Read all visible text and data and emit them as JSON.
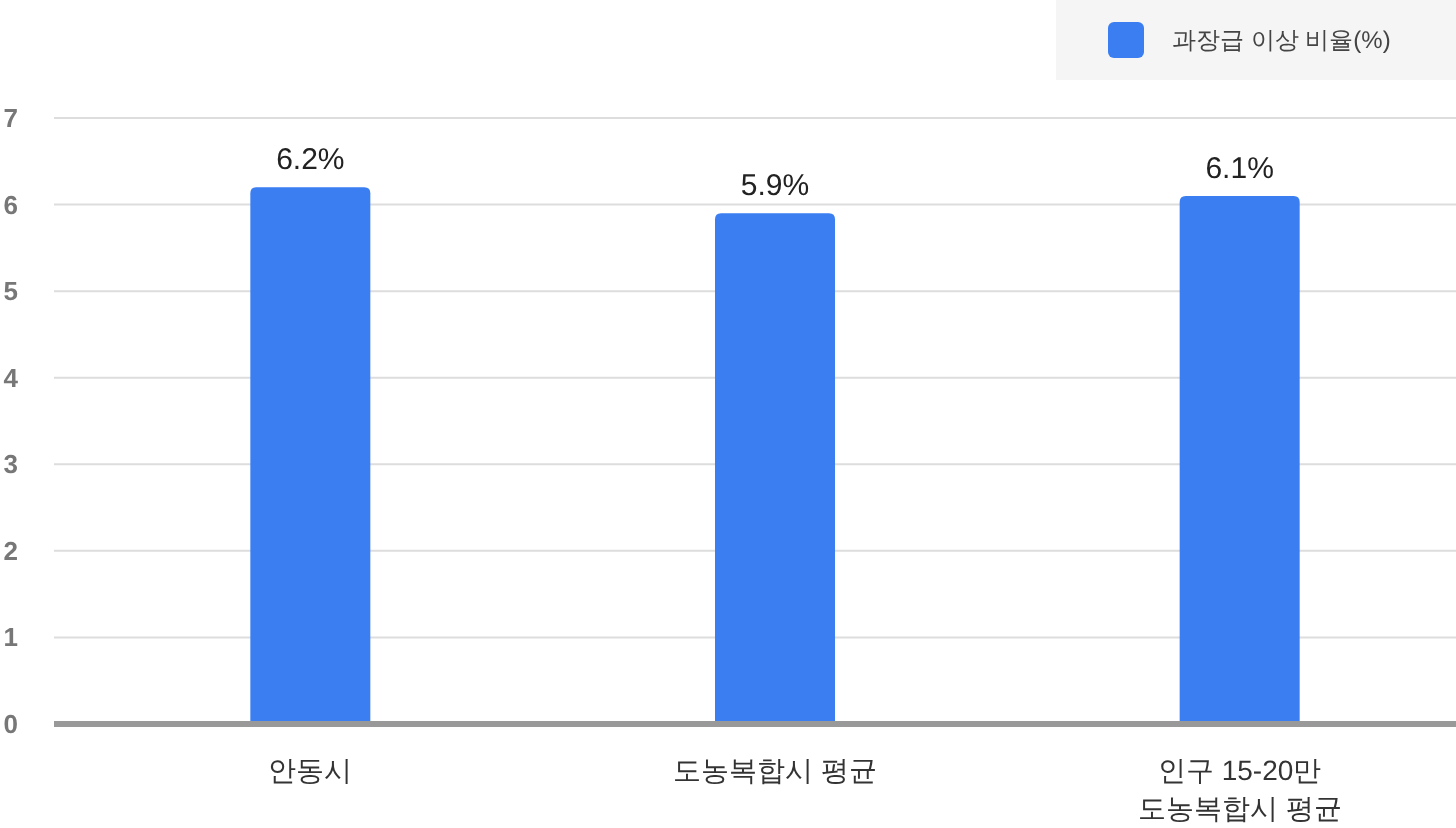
{
  "chart_data": {
    "type": "bar",
    "categories": [
      "안동시",
      "도농복합시 평균",
      "인구 15-20만 도농복합시 평균"
    ],
    "series": [
      {
        "name": "과장급 이상 비율(%)",
        "color": "#3a7ef2",
        "values": [
          6.2,
          5.9,
          6.1
        ],
        "value_labels": [
          "6.2%",
          "5.9%",
          "6.1%"
        ]
      }
    ],
    "ylim": [
      0,
      7
    ],
    "yticks": [
      0,
      1,
      2,
      3,
      4,
      5,
      6,
      7
    ],
    "grid": "y",
    "legend": "top right"
  }
}
